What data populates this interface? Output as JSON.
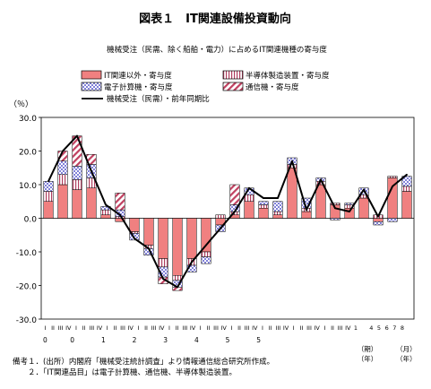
{
  "title": "図表１　IT関連設備投資動向",
  "subtitle": "機械受注（民需、除く船舶・電力）に占めるIT関連機種の寄与度",
  "notes": [
    "備考１．(出所）内閣府「機械受注統計調査」より情報通信総合研究所作成。",
    "２．「IT関連品目」は電子計算機、通信機、半導体製造装置。"
  ],
  "colors": {
    "it_other": "#f08080",
    "semiconductor": "#e8b0c0",
    "computer": "#a0a0e0",
    "comm": "#c04060",
    "line": "#000000"
  },
  "chart_data": {
    "type": "bar",
    "title": "",
    "subtitle": "機械受注（民需、除く船舶・電力）に占めるIT関連機種の寄与度",
    "ylabel": "（％）",
    "ylim": [
      -30,
      30
    ],
    "yticks": [
      "30.0",
      "20.0",
      "10.0",
      "0.0",
      "-10.0",
      "-20.0",
      "-30.0"
    ],
    "y_tick_values": [
      30,
      20,
      10,
      0,
      -10,
      -20,
      -30
    ],
    "grid": false,
    "legend_position": "top",
    "period_labels": [
      {
        "text": "I",
        "slot": 1
      },
      {
        "text": "II",
        "slot": 2
      },
      {
        "text": "III",
        "slot": 3
      },
      {
        "text": "IV",
        "slot": 4
      },
      {
        "text": "I",
        "slot": 5
      },
      {
        "text": "II",
        "slot": 6
      },
      {
        "text": "III",
        "slot": 7
      },
      {
        "text": "IV",
        "slot": 8
      },
      {
        "text": "I",
        "slot": 9
      },
      {
        "text": "II",
        "slot": 10
      },
      {
        "text": "III",
        "slot": 11
      },
      {
        "text": "IV",
        "slot": 12
      },
      {
        "text": "I",
        "slot": 13
      },
      {
        "text": "II",
        "slot": 14
      },
      {
        "text": "III",
        "slot": 15
      },
      {
        "text": "IV",
        "slot": 16
      },
      {
        "text": "I",
        "slot": 17
      },
      {
        "text": "II",
        "slot": 18
      },
      {
        "text": "III",
        "slot": 19
      },
      {
        "text": "IV",
        "slot": 20
      },
      {
        "text": "I",
        "slot": 21
      },
      {
        "text": "II",
        "slot": 22
      },
      {
        "text": "III",
        "slot": 23
      },
      {
        "text": "IV",
        "slot": 24
      },
      {
        "text": "I",
        "slot": 25
      },
      {
        "text": "II",
        "slot": 26
      },
      {
        "text": "III",
        "slot": 27
      },
      {
        "text": "IV",
        "slot": 28
      },
      {
        "text": "I",
        "slot": 29
      },
      {
        "text": "II",
        "slot": 30
      },
      {
        "text": "III",
        "slot": 31
      },
      {
        "text": "IV",
        "slot": 32
      },
      {
        "text": "I",
        "slot": 33
      },
      {
        "text": "II",
        "slot": 34
      },
      {
        "text": "III",
        "slot": 35
      },
      {
        "text": "IV",
        "slot": 36
      },
      {
        "text": "I",
        "slot": 37
      },
      {
        "text": "II",
        "slot": 38
      },
      {
        "text": "III",
        "slot": 39
      },
      {
        "text": "IV",
        "slot": 40
      },
      {
        "text": "1",
        "slot": 41
      },
      {
        "text": "4",
        "slot": 43
      },
      {
        "text": "5",
        "slot": 44
      },
      {
        "text": "6",
        "slot": 45
      },
      {
        "text": "7",
        "slot": 46
      },
      {
        "text": "8",
        "slot": 47
      }
    ],
    "year_labels": [
      {
        "text": "0",
        "slot": 1
      },
      {
        "text": "0",
        "slot": 4.5
      },
      {
        "text": "1",
        "slot": 8.5
      },
      {
        "text": "2",
        "slot": 12.5
      },
      {
        "text": "3",
        "slot": 16.5
      },
      {
        "text": "4",
        "slot": 20.5
      },
      {
        "text": "5",
        "slot": 24.5
      },
      {
        "text": "5",
        "slot": 28.5
      }
    ],
    "axis_notes": [
      {
        "text": "（期）",
        "slot": 42.5,
        "row": 1
      },
      {
        "text": "（年）",
        "slot": 42.5,
        "row": 2
      },
      {
        "text": "（月）",
        "slot": 47.5,
        "row": 1
      },
      {
        "text": "（年）",
        "slot": 47.5,
        "row": 2
      }
    ],
    "legend": [
      {
        "key": "it_other",
        "label": "IT関連以外・寄与度"
      },
      {
        "key": "semiconductor",
        "label": "半導体製造装置・寄与度"
      },
      {
        "key": "computer",
        "label": "電子計算機・寄与度"
      },
      {
        "key": "comm",
        "label": "通信機・寄与度"
      },
      {
        "key": "line",
        "label": "機械受注（民需）・前年同期比"
      }
    ],
    "series": [
      {
        "key": "it_other",
        "values": [
          5,
          10,
          8.5,
          9,
          1,
          -1,
          -4,
          -8,
          -12,
          -17,
          -12,
          -10,
          -2,
          1,
          5,
          3,
          1,
          15,
          2,
          10,
          4,
          3,
          6,
          -1,
          12,
          8
        ]
      },
      {
        "key": "semiconductor",
        "values": [
          3,
          3,
          3,
          3,
          1.5,
          0.5,
          -0.5,
          -1,
          -2.5,
          -1.5,
          -2,
          -1.5,
          1,
          1,
          2,
          1,
          1,
          1,
          1,
          1,
          0.5,
          1,
          1,
          1,
          0.5,
          1.5
        ]
      },
      {
        "key": "computer",
        "values": [
          3,
          4,
          4,
          4,
          1,
          2,
          -2,
          -2,
          -3,
          -2,
          -2,
          -2,
          -2,
          2,
          2,
          1,
          3,
          2,
          3,
          1,
          -0.5,
          0.5,
          2,
          -1,
          -1,
          3
        ]
      },
      {
        "key": "comm",
        "values": [
          0,
          3,
          9,
          3,
          0,
          5,
          0,
          0,
          -2,
          -1,
          0,
          0,
          0,
          6,
          0,
          0,
          0,
          0,
          0,
          0,
          0,
          0,
          0,
          0,
          0,
          0
        ]
      }
    ],
    "line": {
      "key": "line",
      "values": [
        11,
        20,
        24.5,
        14,
        4,
        1,
        -6,
        -9,
        -18,
        -20.5,
        -13,
        -8,
        -3,
        2,
        9,
        6,
        6,
        17,
        2.5,
        11.5,
        3,
        2,
        8.5,
        0.5,
        9.5,
        13
      ]
    }
  }
}
